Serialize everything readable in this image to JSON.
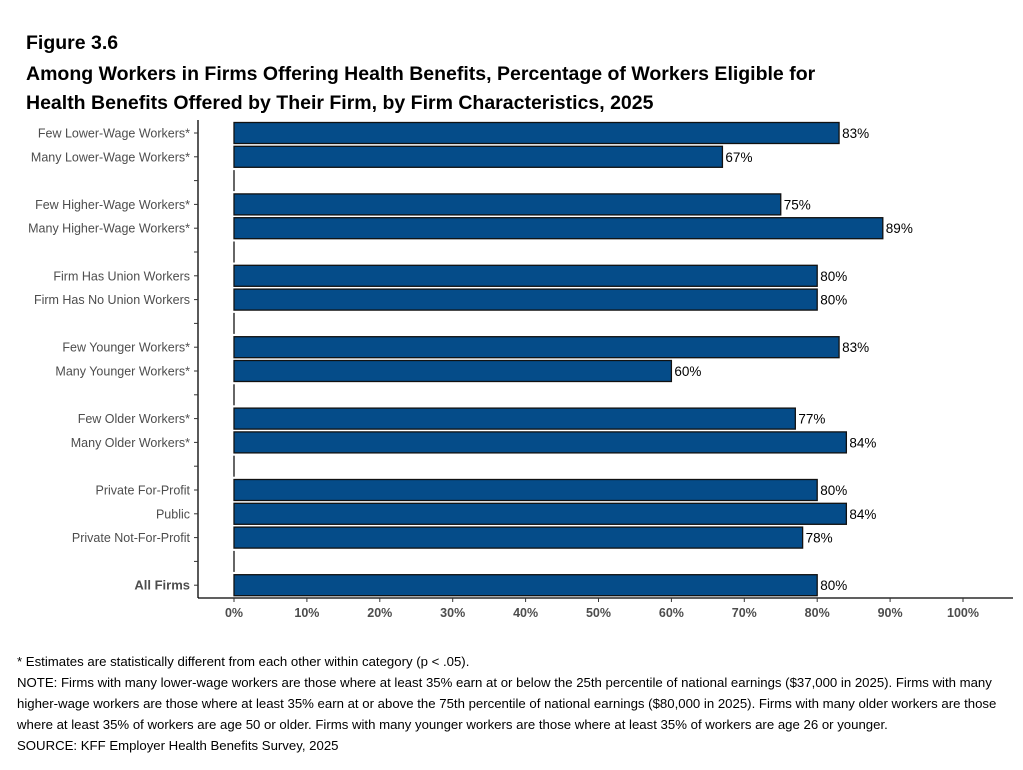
{
  "figure_label": "Figure 3.6",
  "title_line1": "Among Workers in Firms Offering Health Benefits, Percentage of Workers Eligible for",
  "title_line2": "Health Benefits Offered by Their Firm, by Firm Characteristics, 2025",
  "chart_data": {
    "type": "bar",
    "orientation": "horizontal",
    "categories": [
      "Few Lower-Wage Workers*",
      "Many Lower-Wage Workers*",
      "",
      "Few Higher-Wage Workers*",
      "Many Higher-Wage Workers*",
      "",
      "Firm Has Union Workers",
      "Firm Has No Union Workers",
      "",
      "Few Younger Workers*",
      "Many Younger Workers*",
      "",
      "Few Older Workers*",
      "Many Older Workers*",
      "",
      "Private For-Profit",
      "Public",
      "Private Not-For-Profit",
      "",
      "All Firms"
    ],
    "values": [
      83,
      67,
      null,
      75,
      89,
      null,
      80,
      80,
      null,
      83,
      60,
      null,
      77,
      84,
      null,
      80,
      84,
      78,
      null,
      80
    ],
    "data_labels": [
      "83%",
      "67%",
      "",
      "75%",
      "89%",
      "",
      "80%",
      "80%",
      "",
      "83%",
      "60%",
      "",
      "77%",
      "84%",
      "",
      "80%",
      "84%",
      "78%",
      "",
      "80%"
    ],
    "bold_categories": [
      "All Firms"
    ],
    "xlim": [
      0,
      100
    ],
    "x_ticks": [
      "0%",
      "10%",
      "20%",
      "30%",
      "40%",
      "50%",
      "60%",
      "70%",
      "80%",
      "90%",
      "100%"
    ],
    "xlabel": "",
    "ylabel": "",
    "grid": false,
    "bar_color": "#054c89"
  },
  "notes": [
    "* Estimates are statistically different from each other within category (p < .05).",
    "NOTE: Firms with many lower-wage workers are those where at least 35% earn at or below the 25th percentile of national earnings ($37,000 in 2025). Firms with many higher-wage workers are those where at least 35% earn at or above the 75th percentile of national earnings ($80,000 in 2025). Firms with many older workers are those where at least 35% of workers are age 50 or older. Firms with many younger workers are those where at least 35% of workers are age 26 or younger.",
    "SOURCE: KFF Employer Health Benefits Survey, 2025"
  ]
}
